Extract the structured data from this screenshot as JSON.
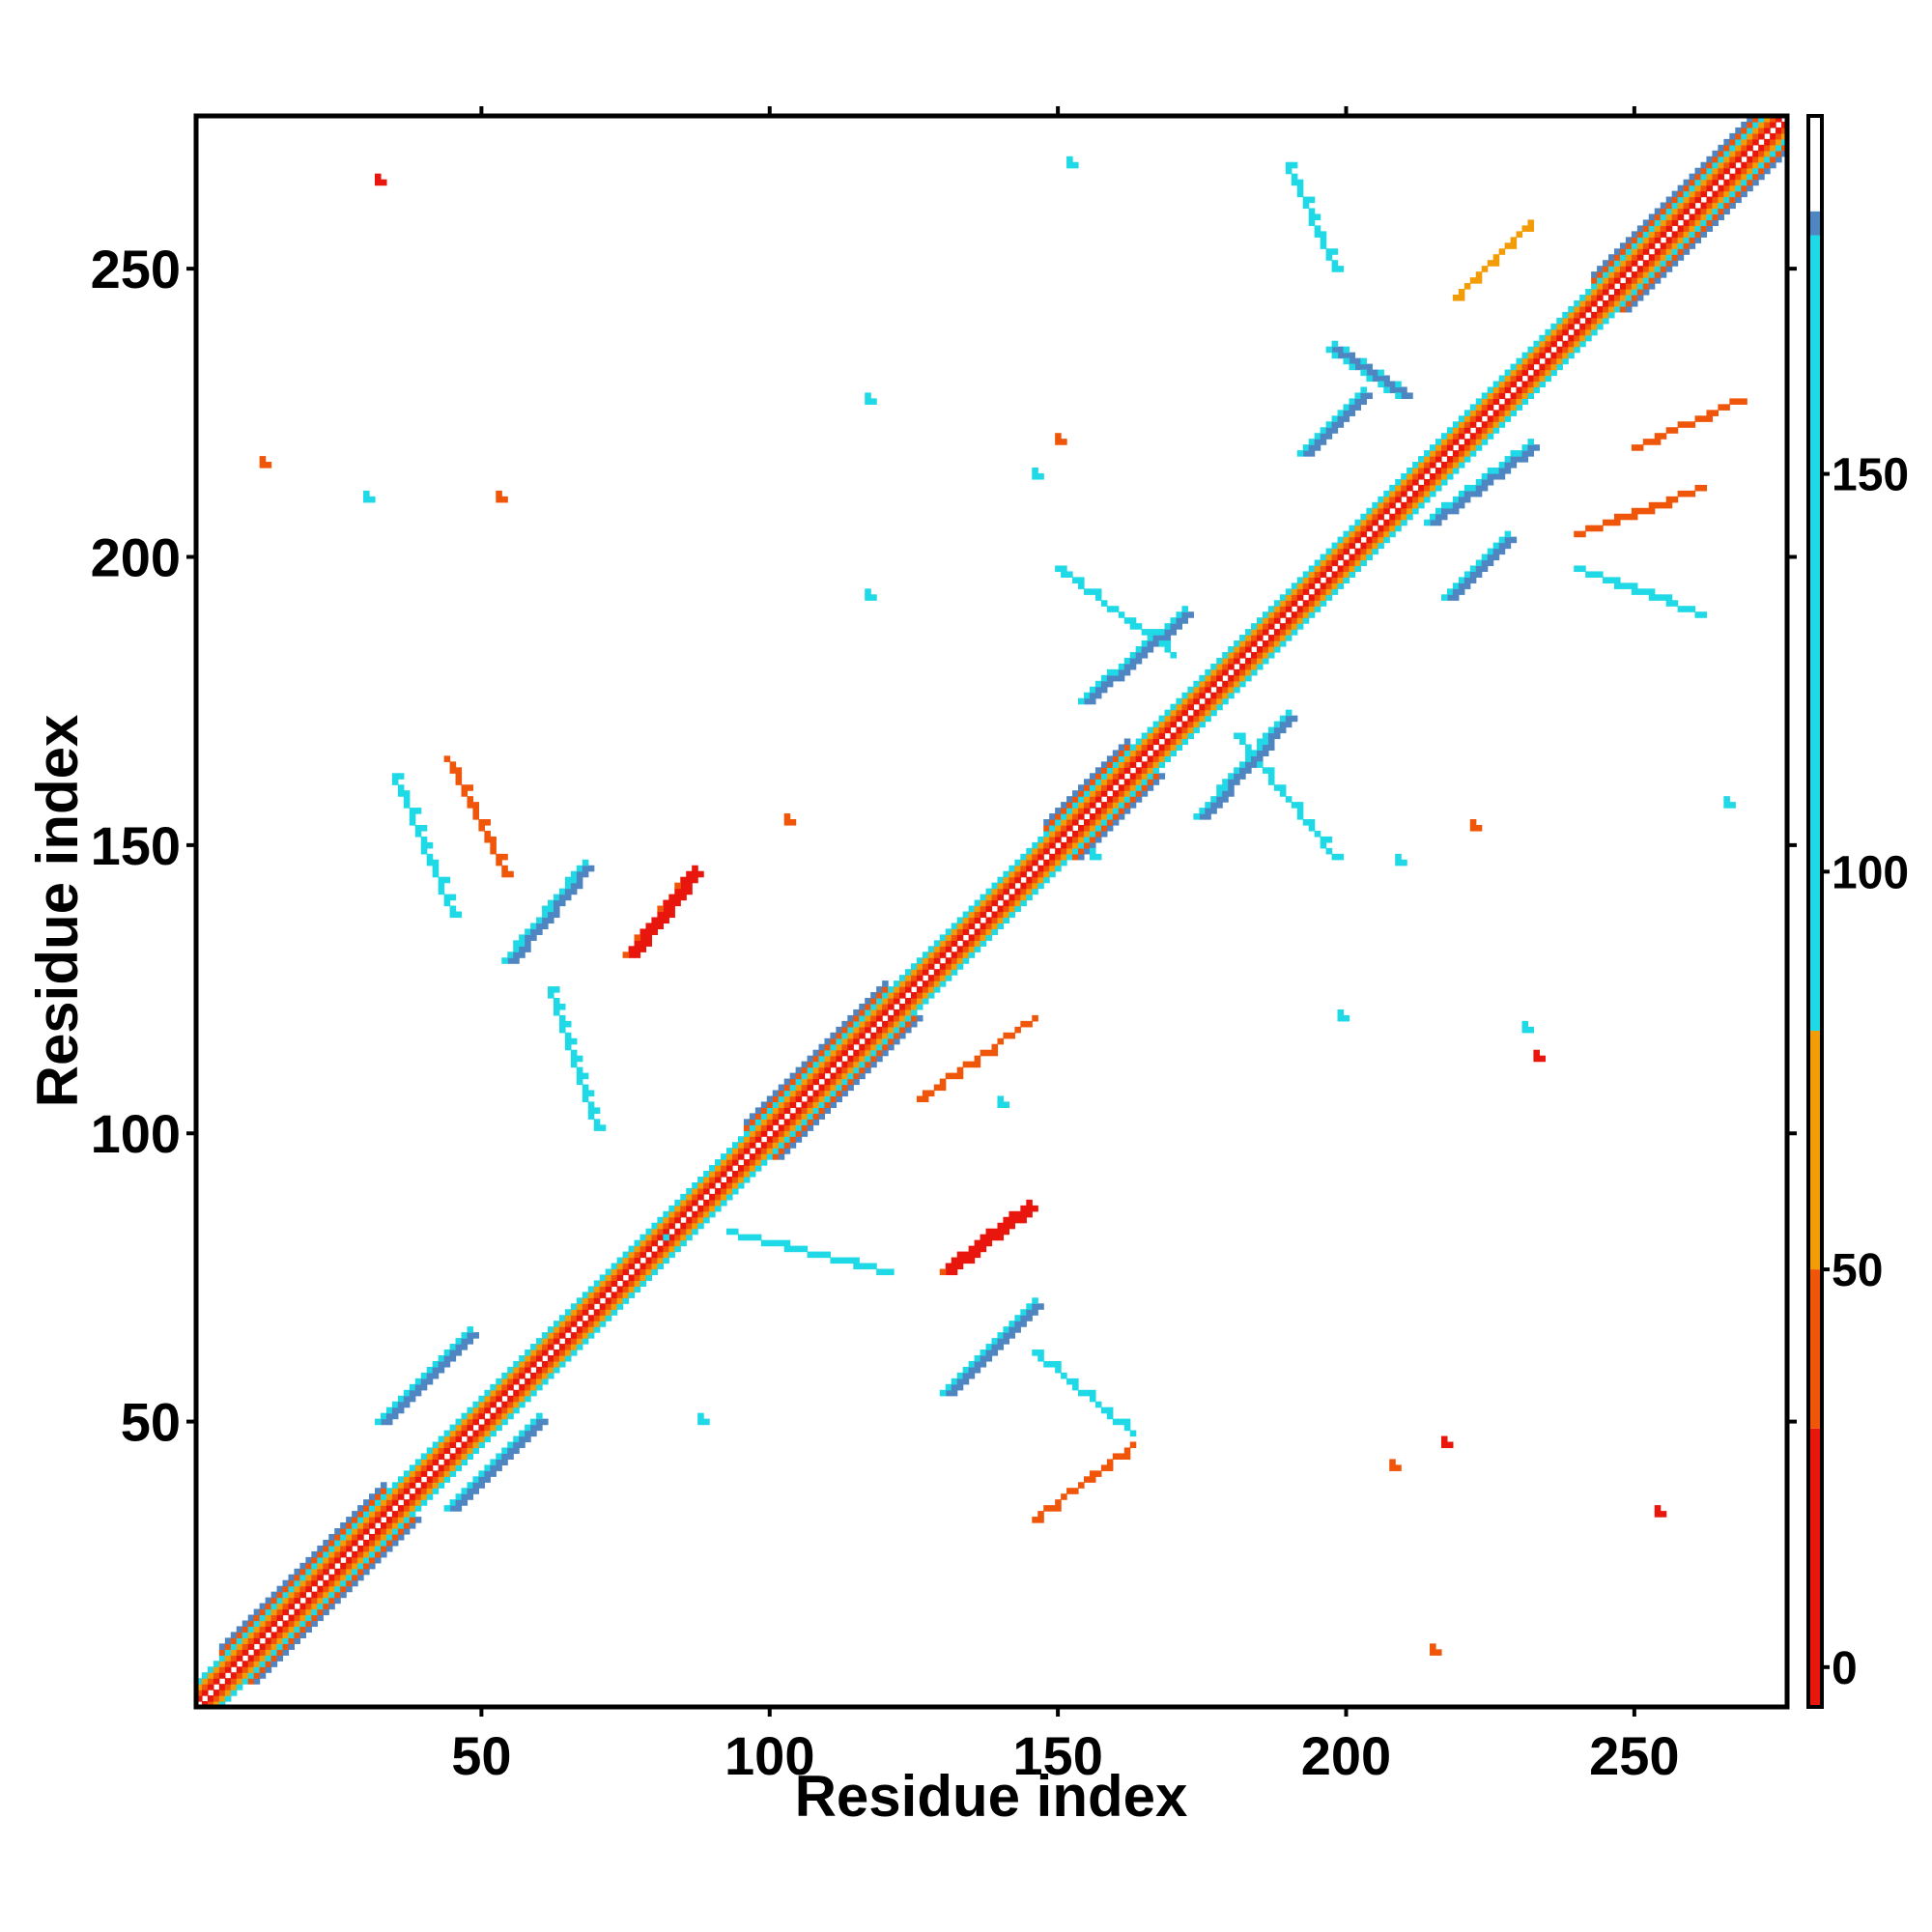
{
  "chart_data": {
    "type": "heatmap",
    "title": "",
    "xlabel": "Residue index",
    "ylabel": "Residue index",
    "xlim": [
      1,
      276
    ],
    "ylim": [
      1,
      276
    ],
    "x_ticks": [
      50,
      100,
      150,
      200,
      250
    ],
    "y_ticks": [
      50,
      100,
      150,
      200,
      250
    ],
    "colorbar": {
      "ticks": [
        0,
        50,
        100,
        150
      ],
      "range": [
        -5,
        195
      ],
      "bins": [
        {
          "min": -5,
          "max": 30,
          "color": "#e8160c"
        },
        {
          "min": 30,
          "max": 50,
          "color": "#f0560a"
        },
        {
          "min": 50,
          "max": 80,
          "color": "#f29d08"
        },
        {
          "min": 80,
          "max": 180,
          "color": "#1fd9e6"
        },
        {
          "min": 180,
          "max": 195,
          "color": "#4f86c2"
        }
      ],
      "top_white_from": 183
    },
    "diagonal_band": {
      "from": 1,
      "to": 276
    },
    "helix_segments": [
      [
        5,
        12
      ],
      [
        13,
        33
      ],
      [
        96,
        120
      ],
      [
        148,
        162
      ],
      [
        243,
        276
      ]
    ],
    "strand_pairs_antiparallel": [
      {
        "i": [
          45,
          60
        ],
        "j": [
          35,
          50
        ]
      },
      {
        "i": [
          33,
          48
        ],
        "j": [
          50,
          65
        ]
      },
      {
        "i": [
          131,
          146
        ],
        "j": [
          55,
          70
        ]
      },
      {
        "i": [
          55,
          68
        ],
        "j": [
          130,
          146
        ]
      },
      {
        "i": [
          155,
          172
        ],
        "j": [
          175,
          190
        ]
      },
      {
        "i": [
          175,
          190
        ],
        "j": [
          155,
          172
        ]
      },
      {
        "i": [
          193,
          203
        ],
        "j": [
          218,
          228
        ]
      },
      {
        "i": [
          218,
          228
        ],
        "j": [
          193,
          203
        ]
      },
      {
        "i": [
          215,
          232
        ],
        "j": [
          206,
          219
        ]
      },
      {
        "i": [
          198,
          210
        ],
        "j": [
          236,
          228
        ]
      }
    ],
    "strand_pairs_parallel": [
      {
        "i": [
          76,
          87
        ],
        "j": [
          131,
          145
        ]
      },
      {
        "i": [
          131,
          145
        ],
        "j": [
          76,
          87
        ]
      }
    ],
    "off_diagonal_streaks": [
      {
        "x": [
          35,
          45
        ],
        "y": [
          162,
          138
        ],
        "value": 110
      },
      {
        "x": [
          54,
          44
        ],
        "y": [
          145,
          165
        ],
        "value": 40
      },
      {
        "x": [
          62,
          70
        ],
        "y": [
          125,
          101
        ],
        "value": 110
      },
      {
        "x": [
          93,
          120
        ],
        "y": [
          83,
          76
        ],
        "value": 110
      },
      {
        "x": [
          146,
          163
        ],
        "y": [
          62,
          48
        ],
        "value": 110
      },
      {
        "x": [
          146,
          163
        ],
        "y": [
          33,
          46
        ],
        "value": 40
      },
      {
        "x": [
          150,
          170
        ],
        "y": [
          198,
          183
        ],
        "value": 110
      },
      {
        "x": [
          181,
          198
        ],
        "y": [
          169,
          148
        ],
        "value": 110
      },
      {
        "x": [
          190,
          198
        ],
        "y": [
          268,
          250
        ],
        "value": 160
      },
      {
        "x": [
          219,
          232
        ],
        "y": [
          245,
          258
        ],
        "value": 50
      },
      {
        "x": [
          240,
          262
        ],
        "y": [
          198,
          190
        ],
        "value": 160
      },
      {
        "x": [
          240,
          262
        ],
        "y": [
          204,
          212
        ],
        "value": 40
      },
      {
        "x": [
          250,
          268
        ],
        "y": [
          219,
          227
        ],
        "value": 40
      },
      {
        "x": [
          126,
          146
        ],
        "y": [
          106,
          120
        ],
        "value": 40
      }
    ],
    "scattered_contacts": [
      {
        "x": 30,
        "y": 210,
        "value": 110
      },
      {
        "x": 32,
        "y": 265,
        "value": 20
      },
      {
        "x": 12,
        "y": 216,
        "value": 35
      },
      {
        "x": 53,
        "y": 210,
        "value": 40
      },
      {
        "x": 117,
        "y": 227,
        "value": 110
      },
      {
        "x": 117,
        "y": 193,
        "value": 110
      },
      {
        "x": 146,
        "y": 214,
        "value": 110
      },
      {
        "x": 150,
        "y": 220,
        "value": 40
      },
      {
        "x": 152,
        "y": 268,
        "value": 110
      },
      {
        "x": 103,
        "y": 154,
        "value": 40
      },
      {
        "x": 208,
        "y": 42,
        "value": 40
      },
      {
        "x": 209,
        "y": 147,
        "value": 110
      },
      {
        "x": 199,
        "y": 120,
        "value": 110
      },
      {
        "x": 231,
        "y": 118,
        "value": 110
      },
      {
        "x": 233,
        "y": 113,
        "value": 20
      },
      {
        "x": 222,
        "y": 153,
        "value": 40
      },
      {
        "x": 215,
        "y": 10,
        "value": 40
      },
      {
        "x": 217,
        "y": 46,
        "value": 20
      },
      {
        "x": 254,
        "y": 34,
        "value": 20
      },
      {
        "x": 266,
        "y": 157,
        "value": 110
      },
      {
        "x": 82,
        "y": 82,
        "value": 110
      },
      {
        "x": 88,
        "y": 50,
        "value": 110
      },
      {
        "x": 156,
        "y": 148,
        "value": 110
      },
      {
        "x": 140,
        "y": 105,
        "value": 160
      }
    ]
  }
}
